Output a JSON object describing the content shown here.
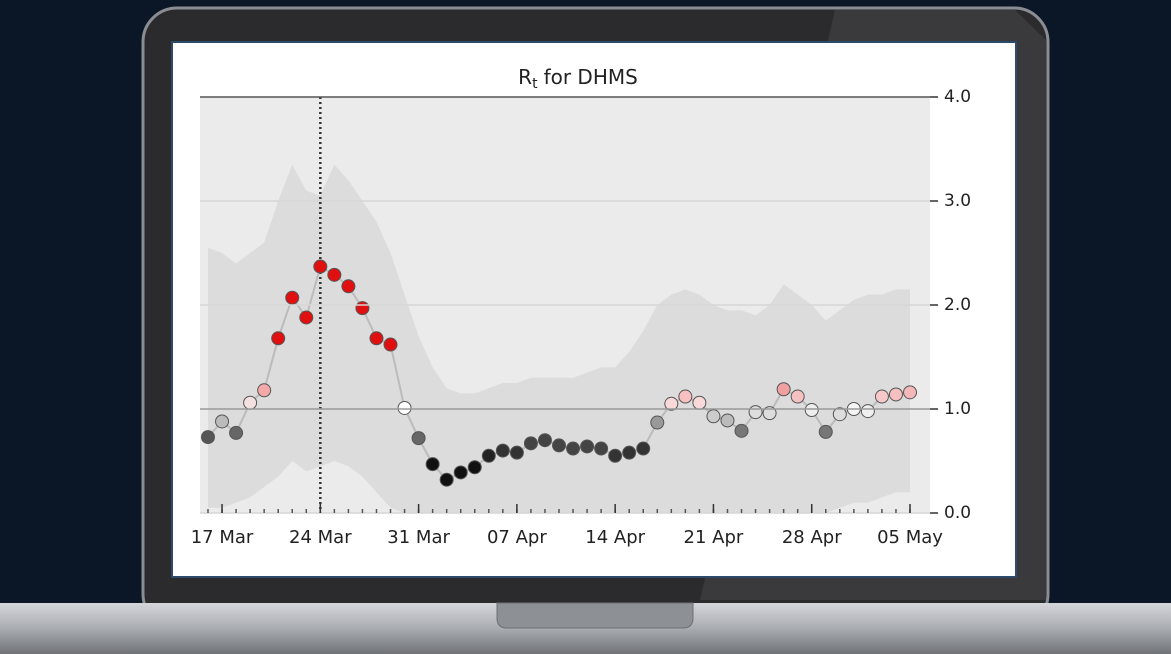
{
  "chart_data": {
    "type": "line",
    "title": {
      "symbol": "R",
      "subscript": "t",
      "text": "for DHMS"
    },
    "categories": [
      null,
      "17 Mar",
      null,
      null,
      null,
      null,
      null,
      null,
      "24 Mar",
      null,
      null,
      null,
      null,
      null,
      null,
      "31 Mar",
      null,
      null,
      null,
      null,
      null,
      null,
      "07 Apr",
      null,
      null,
      null,
      null,
      null,
      null,
      "14 Apr",
      null,
      null,
      null,
      null,
      null,
      null,
      "21 Apr",
      null,
      null,
      null,
      null,
      null,
      null,
      "28 Apr",
      null,
      null,
      null,
      null,
      null,
      null,
      "05 May"
    ],
    "values": [
      0.73,
      0.88,
      0.77,
      1.06,
      1.18,
      1.68,
      2.07,
      1.88,
      2.37,
      2.29,
      2.18,
      1.97,
      1.68,
      1.62,
      1.01,
      0.72,
      0.47,
      0.32,
      0.39,
      0.44,
      0.55,
      0.6,
      0.58,
      0.67,
      0.7,
      0.65,
      0.62,
      0.64,
      0.62,
      0.55,
      0.58,
      0.62,
      0.87,
      1.05,
      1.12,
      1.06,
      0.93,
      0.89,
      0.79,
      0.97,
      0.96,
      1.19,
      1.12,
      0.99,
      0.78,
      0.95,
      1.0,
      0.98,
      1.12,
      1.14,
      1.16
    ],
    "point_colors": [
      "#555555",
      "#bbbbbb",
      "#666666",
      "#f4e0e0",
      "#f4a8a8",
      "#e01010",
      "#e01010",
      "#e01010",
      "#e01010",
      "#e01010",
      "#e01010",
      "#e01010",
      "#e01010",
      "#e01010",
      "#ffffff",
      "#666666",
      "#111111",
      "#111111",
      "#111111",
      "#111111",
      "#222222",
      "#333333",
      "#333333",
      "#444444",
      "#444444",
      "#444444",
      "#444444",
      "#444444",
      "#444444",
      "#333333",
      "#333333",
      "#333333",
      "#999999",
      "#f8d8d8",
      "#f8c0c0",
      "#f8d8d8",
      "#cccccc",
      "#bbbbbb",
      "#777777",
      "#dddddd",
      "#dddddd",
      "#f0a0a0",
      "#f4c0c0",
      "#eeeeee",
      "#777777",
      "#dddddd",
      "#f5f5f5",
      "#f0f0f0",
      "#f6c8c8",
      "#f6c0c0",
      "#f4b8b8"
    ],
    "band_upper": [
      2.55,
      2.5,
      2.4,
      2.5,
      2.6,
      3.0,
      3.35,
      3.1,
      3.05,
      3.35,
      3.2,
      3.0,
      2.8,
      2.5,
      2.1,
      1.7,
      1.4,
      1.2,
      1.15,
      1.15,
      1.2,
      1.25,
      1.25,
      1.3,
      1.3,
      1.3,
      1.3,
      1.35,
      1.4,
      1.4,
      1.55,
      1.75,
      2.0,
      2.1,
      2.15,
      2.1,
      2.0,
      1.95,
      1.95,
      1.9,
      2.0,
      2.2,
      2.1,
      2.0,
      1.85,
      1.95,
      2.05,
      2.1,
      2.1,
      2.15,
      2.15
    ],
    "band_lower": [
      0.05,
      0.05,
      0.1,
      0.15,
      0.25,
      0.35,
      0.5,
      0.4,
      0.45,
      0.5,
      0.45,
      0.35,
      0.2,
      0.05,
      0.0,
      0.0,
      0.0,
      0.0,
      0.0,
      0.0,
      0.0,
      0.0,
      0.0,
      0.0,
      0.0,
      0.0,
      0.0,
      0.0,
      0.0,
      0.0,
      0.0,
      0.0,
      0.0,
      0.0,
      0.0,
      0.0,
      0.0,
      0.0,
      0.0,
      0.0,
      0.0,
      0.0,
      0.0,
      0.0,
      0.0,
      0.05,
      0.1,
      0.1,
      0.15,
      0.2,
      0.2
    ],
    "line_color": "#bbbbbb",
    "band_color": "#dcdcdc",
    "background_color": "#ebebeb",
    "reference_line": 1,
    "vline": "24 Mar",
    "ylim": [
      0,
      4
    ],
    "yticks": [
      {
        "value": 0,
        "label": "0.0"
      },
      {
        "value": 1,
        "label": "1.0"
      },
      {
        "value": 2,
        "label": "2.0"
      },
      {
        "value": 3,
        "label": "3.0"
      },
      {
        "value": 4,
        "label": "4.0"
      }
    ],
    "grid": true,
    "y_axis_side": "right"
  }
}
